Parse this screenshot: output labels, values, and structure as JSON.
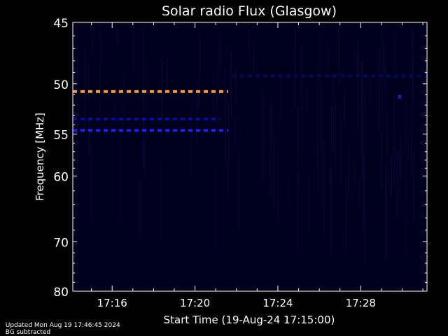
{
  "chart_data": {
    "type": "heatmap",
    "title": "Solar radio Flux (Glasgow)",
    "xlabel": "Start Time (19-Aug-24 17:15:00)",
    "ylabel": "Frequency [MHz]",
    "x_range_minutes_after_start": [
      -0.9,
      16.2
    ],
    "ylim": [
      45,
      80
    ],
    "x_ticks": [
      {
        "minutes_after_start": 1,
        "label": "17:16"
      },
      {
        "minutes_after_start": 5,
        "label": "17:20"
      },
      {
        "minutes_after_start": 9,
        "label": "17:24"
      },
      {
        "minutes_after_start": 13,
        "label": "17:28"
      }
    ],
    "y_ticks": [
      {
        "value": 45,
        "label": "45"
      },
      {
        "value": 50,
        "label": "50"
      },
      {
        "value": 55,
        "label": "55"
      },
      {
        "value": 60,
        "label": "60"
      },
      {
        "value": 70,
        "label": "70"
      },
      {
        "value": 80,
        "label": "80"
      }
    ],
    "background_color": "#00001e",
    "features": [
      {
        "name": "band-50.7MHz",
        "frequency_mhz": 50.7,
        "start_min": -0.9,
        "end_min": 6.6,
        "color": "#ff9a2e"
      },
      {
        "name": "band-53.4MHz",
        "frequency_mhz": 53.4,
        "start_min": -0.9,
        "end_min": 6.2,
        "color": "#0a0aa8"
      },
      {
        "name": "band-54.6MHz",
        "frequency_mhz": 54.6,
        "start_min": -0.9,
        "end_min": 6.6,
        "color": "#1c1cff"
      },
      {
        "name": "band-49.3MHz",
        "frequency_mhz": 49.3,
        "start_min": 6.8,
        "end_min": 16.2,
        "color": "#07075a"
      },
      {
        "name": "spot-51MHz",
        "frequency_mhz": 51.2,
        "start_min": 14.8,
        "end_min": 14.95,
        "color": "#1a1ad0"
      }
    ]
  },
  "footer": {
    "updated": "Updated Mon Aug 19 17:46:45 2024",
    "note": "BG subtracted"
  }
}
